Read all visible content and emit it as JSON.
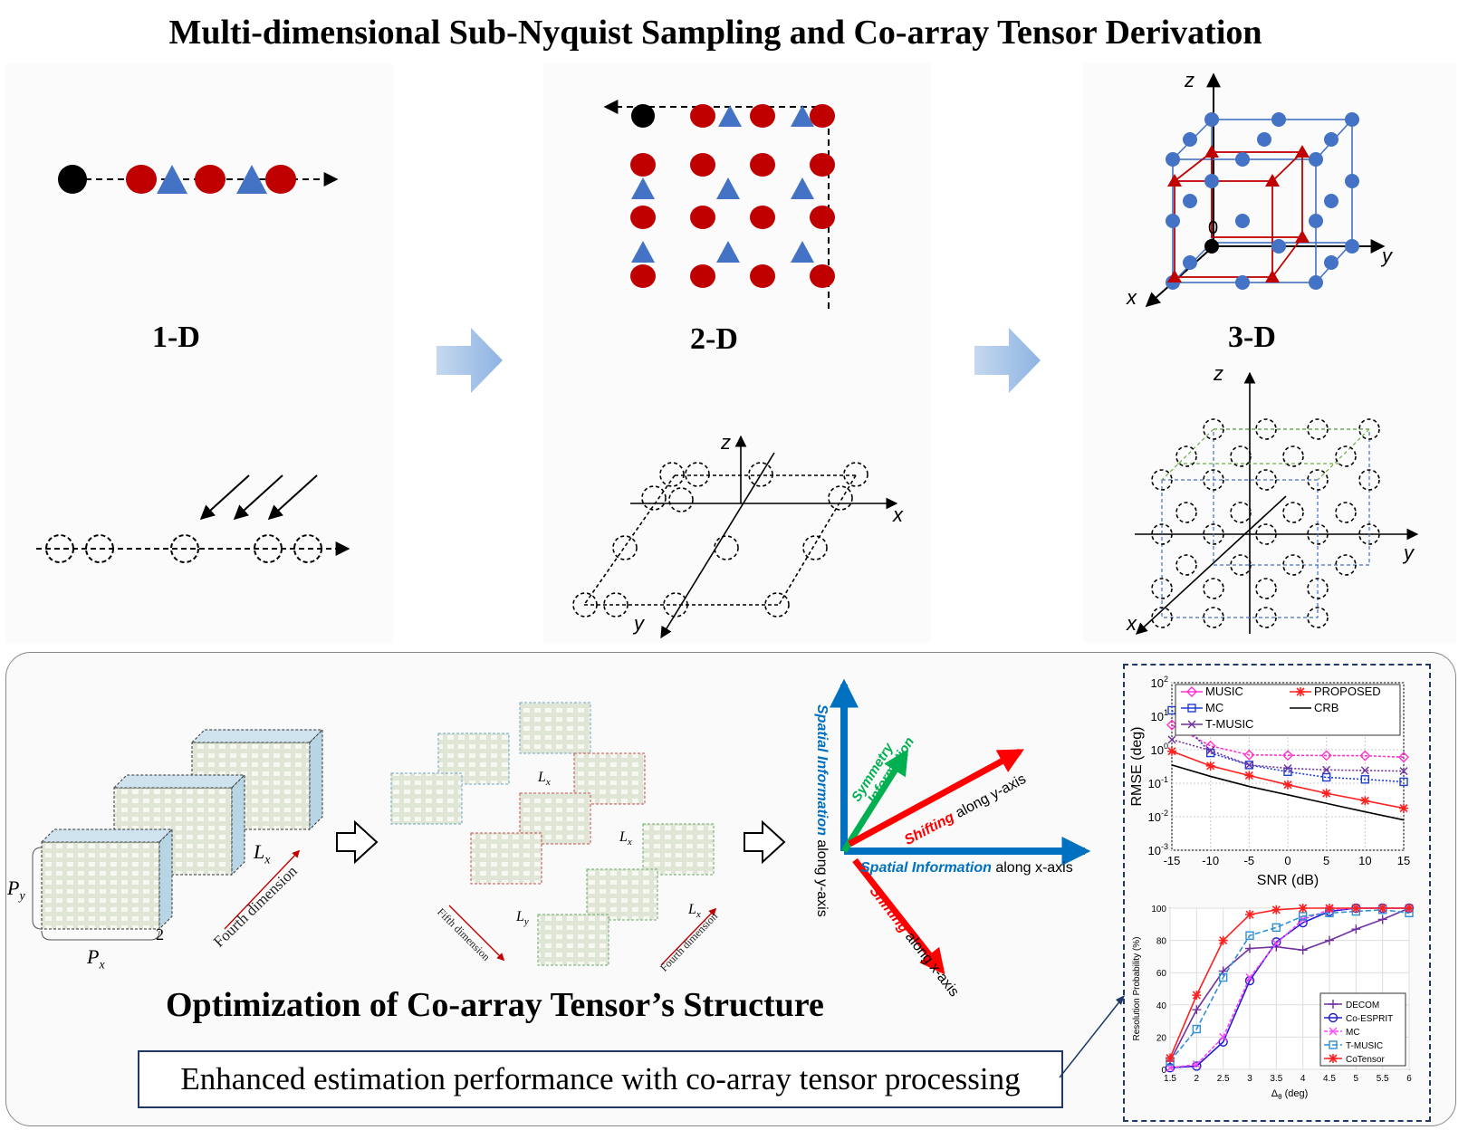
{
  "title": "Multi-dimensional Sub-Nyquist Sampling and Co-array Tensor Derivation",
  "dimensions": {
    "one_d": "1-D",
    "two_d": "2-D",
    "three_d": "3-D"
  },
  "axes": {
    "x": "x",
    "y": "y",
    "z": "z",
    "origin": "0"
  },
  "tensor_labels": {
    "py": "P",
    "py_sub": "y",
    "px": "P",
    "px_sub": "x",
    "lx": "L",
    "lx_sub": "x",
    "ly": "L",
    "ly_sub": "y",
    "two": "2",
    "fourth_dimension": "Fourth dimension",
    "fifth_dimension": "Fifth dimension"
  },
  "info_arrows": {
    "spatial_y_bold": "Spatial Information",
    "spatial_y_rest": " along y-axis",
    "spatial_x_bold": "Spatial Information",
    "spatial_x_rest": " along x-axis",
    "symmetry_1": "Symmetry",
    "symmetry_2": "Information",
    "shift_y_bold": "Shifting",
    "shift_y_rest": " along y-axis",
    "shift_x_bold": "Shifting",
    "shift_x_rest": " along x-axis"
  },
  "optimization_title": "Optimization of Co-array Tensor’s Structure",
  "enhanced_text": "Enhanced estimation performance with co-array tensor processing",
  "colors": {
    "red": "#c00000",
    "blue": "#4472c4",
    "green": "#00b050",
    "navy": "#1f3864",
    "dot_red": "#c00000",
    "dot_blue": "#4472c4"
  },
  "chart_data": [
    {
      "type": "line",
      "x": [
        -15,
        -10,
        -5,
        0,
        5,
        10,
        15
      ],
      "xlabel": "SNR (dB)",
      "ylabel": "RMSE (deg)",
      "yscale": "log",
      "ylim": [
        0.001,
        100
      ],
      "xticks": [
        "-15",
        "-10",
        "-5",
        "0",
        "5",
        "10",
        "15"
      ],
      "yticks": [
        "10^2",
        "10^1",
        "10^0",
        "10^-1",
        "10^-2",
        "10^-3"
      ],
      "legend": "top",
      "grid": true,
      "series": [
        {
          "name": "MUSIC",
          "color": "#ff33cc",
          "marker": "diamond",
          "values": [
            5.5,
            1.3,
            0.7,
            0.68,
            0.67,
            0.66,
            0.6
          ]
        },
        {
          "name": "MC",
          "color": "#1f3fcf",
          "marker": "square",
          "values": [
            15,
            0.8,
            0.35,
            0.22,
            0.15,
            0.13,
            0.11
          ]
        },
        {
          "name": "T-MUSIC",
          "color": "#7030a0",
          "marker": "x",
          "values": [
            2.0,
            0.95,
            0.35,
            0.28,
            0.25,
            0.24,
            0.23
          ]
        },
        {
          "name": "PROPOSED",
          "color": "#ff2020",
          "marker": "star",
          "values": [
            0.9,
            0.33,
            0.17,
            0.09,
            0.05,
            0.03,
            0.018
          ]
        },
        {
          "name": "CRB",
          "color": "#000000",
          "marker": "none",
          "values": [
            0.35,
            0.16,
            0.08,
            0.045,
            0.025,
            0.014,
            0.008
          ]
        }
      ]
    },
    {
      "type": "line",
      "x": [
        1.5,
        2,
        2.5,
        3,
        3.5,
        4,
        4.5,
        5,
        5.5,
        6
      ],
      "xlabel": "Δθ (deg)",
      "xlabel_main": "Δ",
      "xlabel_sub": "θ",
      "xlabel_tail": " (deg)",
      "ylabel": "Resolution Probability (%)",
      "ylim": [
        0,
        100
      ],
      "xticks": [
        "1.5",
        "2",
        "2.5",
        "3",
        "3.5",
        "4",
        "4.5",
        "5",
        "5.5",
        "6"
      ],
      "yticks": [
        "0",
        "20",
        "40",
        "60",
        "80",
        "100"
      ],
      "legend": "bottom-right",
      "grid": true,
      "series": [
        {
          "name": "DECOM",
          "color": "#7030a0",
          "marker": "plus",
          "values": [
            5,
            37,
            61,
            75,
            76,
            74,
            80,
            87,
            93,
            100
          ]
        },
        {
          "name": "Co-ESPRIT",
          "color": "#1f1fcf",
          "marker": "circle",
          "values": [
            1,
            2,
            17,
            55,
            79,
            91,
            98,
            100,
            100,
            100
          ]
        },
        {
          "name": "MC",
          "color": "#ff44ff",
          "marker": "x",
          "values": [
            1,
            3,
            20,
            57,
            78,
            93,
            99,
            100,
            100,
            100
          ]
        },
        {
          "name": "T-MUSIC",
          "color": "#2f8fd8",
          "marker": "square",
          "values": [
            5,
            25,
            57,
            83,
            88,
            95,
            97,
            98,
            99,
            97
          ]
        },
        {
          "name": "CoTensor",
          "color": "#ff2020",
          "marker": "star",
          "values": [
            7,
            46,
            80,
            96,
            99,
            100,
            100,
            100,
            100,
            100
          ]
        }
      ]
    }
  ]
}
